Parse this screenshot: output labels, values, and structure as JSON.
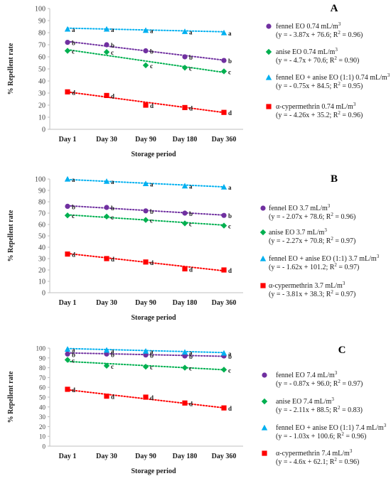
{
  "chart_data": [
    {
      "type": "line",
      "panel_label": "A",
      "categories": [
        "Day 1",
        "Day 30",
        "Day 90",
        "Day 180",
        "Day 360"
      ],
      "xlabel": "Storage period",
      "ylabel": "% Repellent rate",
      "ylim": [
        0,
        100
      ],
      "ytick_step": 10,
      "grid": false,
      "legend_position": "right",
      "series": [
        {
          "name": "fennel EO 0.74 mL/m³",
          "equation": "(y = - 3.87x + 76.6; R² = 0.96)",
          "color": "#7030a0",
          "marker": "circle",
          "values": [
            72,
            70,
            65,
            60,
            57
          ],
          "letters": [
            "b",
            "b",
            "b",
            "b",
            "b"
          ],
          "trend": [
            -3.87,
            76.6
          ]
        },
        {
          "name": "anise EO 0.74 mL/m³",
          "equation": "(y = - 4.7x + 70.6; R² = 0.90)",
          "color": "#00b050",
          "marker": "diamond",
          "values": [
            65,
            64,
            53,
            51,
            48
          ],
          "letters": [
            "c",
            "c",
            "c",
            "c",
            "c"
          ],
          "trend": [
            -4.7,
            70.6
          ]
        },
        {
          "name": "fennel EO + anise EO (1:1) 0.74 mL/m³",
          "equation": "(y = - 0.75x + 84.5; R² = 0.95)",
          "color": "#00b0f0",
          "marker": "triangle",
          "values": [
            83,
            83,
            82,
            81,
            80
          ],
          "letters": [
            "a",
            "a",
            "a",
            "a",
            "a"
          ],
          "trend": [
            -0.75,
            84.5
          ]
        },
        {
          "name": "α-cypermethrin 0.74 mL/m³",
          "equation": "(y = - 4.26x + 35.2; R² = 0.96)",
          "color": "#ff0000",
          "marker": "square",
          "values": [
            31,
            28,
            20,
            18,
            14
          ],
          "letters": [
            "d",
            "d",
            "d",
            "d",
            "d"
          ],
          "trend": [
            -4.26,
            35.2
          ]
        }
      ]
    },
    {
      "type": "line",
      "panel_label": "B",
      "categories": [
        "Day 1",
        "Day 30",
        "Day 90",
        "Day 180",
        "Day 360"
      ],
      "xlabel": "Storage period",
      "ylabel": "% Repellent rate",
      "ylim": [
        0,
        100
      ],
      "ytick_step": 10,
      "grid": false,
      "legend_position": "right",
      "series": [
        {
          "name": "fennel EO 3.7 mL/m³",
          "equation": "(y = - 2.07x + 78.6; R² = 0.96)",
          "color": "#7030a0",
          "marker": "circle",
          "values": [
            76,
            75,
            72,
            70,
            68
          ],
          "letters": [
            "b",
            "b",
            "b",
            "b",
            "b"
          ],
          "trend": [
            -2.07,
            78.6
          ]
        },
        {
          "name": "anise EO 3.7 mL/m³",
          "equation": "(y = - 2.27x + 70.8; R² = 0.97)",
          "color": "#00b050",
          "marker": "diamond",
          "values": [
            68,
            67,
            64,
            61,
            59
          ],
          "letters": [
            "c",
            "c",
            "c",
            "c",
            "c"
          ],
          "trend": [
            -2.27,
            70.8
          ]
        },
        {
          "name": "fennel EO + anise EO (1:1) 3.7 mL/m³",
          "equation": "(y = - 1.62x + 101.2; R² = 0.97)",
          "color": "#00b0f0",
          "marker": "triangle",
          "values": [
            100,
            98,
            96,
            94,
            93
          ],
          "letters": [
            "a",
            "a",
            "a",
            "a",
            "a"
          ],
          "trend": [
            -1.62,
            101.2
          ]
        },
        {
          "name": "α-cypermethrin 3.7 mL/m³",
          "equation": "(y = - 3.81x + 38.3; R² = 0.97)",
          "color": "#ff0000",
          "marker": "square",
          "values": [
            34,
            30,
            27,
            21,
            20
          ],
          "letters": [
            "d",
            "d",
            "d",
            "d",
            "d"
          ],
          "trend": [
            -3.81,
            38.3
          ]
        }
      ]
    },
    {
      "type": "line",
      "panel_label": "C",
      "categories": [
        "Day 1",
        "Day 30",
        "Day 90",
        "Day 180",
        "Day 360"
      ],
      "xlabel": "Storage period",
      "ylabel": "% Repellent rate",
      "ylim": [
        0,
        100
      ],
      "ytick_step": 10,
      "grid": false,
      "legend_position": "right",
      "series": [
        {
          "name": "fennel EO 7.4 mL/m³",
          "equation": "(y = - 0.87x + 96.0; R² = 0.97)",
          "color": "#7030a0",
          "marker": "circle",
          "values": [
            94,
            94,
            93,
            92,
            92
          ],
          "letters": [
            "b",
            "b",
            "b",
            "b",
            "b"
          ],
          "trend": [
            -0.87,
            96.0
          ]
        },
        {
          "name": "anise EO 7.4 mL/m³",
          "equation": "(y = - 2.11x + 88.5; R² = 0.83)",
          "color": "#00b050",
          "marker": "diamond",
          "values": [
            88,
            82,
            81,
            80,
            78
          ],
          "letters": [
            "c",
            "c",
            "c",
            "c",
            "c"
          ],
          "trend": [
            -2.11,
            88.5
          ]
        },
        {
          "name": "fennel EO + anise EO (1:1) 7.4 mL/m³",
          "equation": "(y = - 1.03x + 100.6; R² = 0.96)",
          "color": "#00b0f0",
          "marker": "triangle",
          "values": [
            99,
            98,
            97,
            96,
            95
          ],
          "letters": [
            "a",
            "a",
            "a",
            "a",
            "a"
          ],
          "trend": [
            -1.03,
            100.6
          ]
        },
        {
          "name": "α-cypermethrin 7.4 mL/m³",
          "equation": "(y = - 4.6x + 62.1; R² = 0.96)",
          "color": "#ff0000",
          "marker": "square",
          "values": [
            58,
            51,
            50,
            44,
            39
          ],
          "letters": [
            "d",
            "d",
            "d",
            "d",
            "d"
          ],
          "trend": [
            -4.6,
            62.1
          ]
        }
      ]
    }
  ]
}
